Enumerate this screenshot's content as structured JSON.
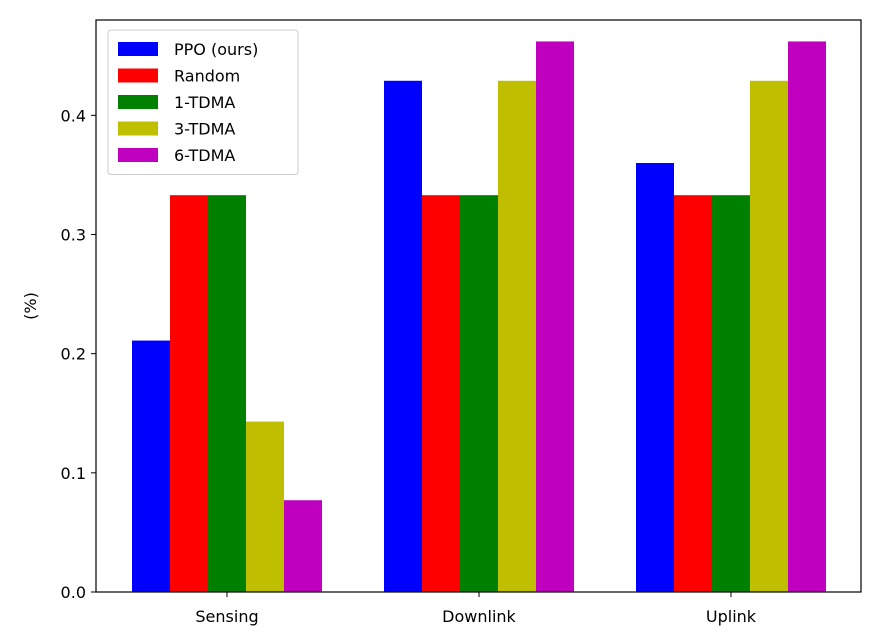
{
  "chart_data": {
    "type": "bar",
    "categories": [
      "Sensing",
      "Downlink",
      "Uplink"
    ],
    "series": [
      {
        "name": "PPO (ours)",
        "color": "#0000ff",
        "values": [
          0.211,
          0.429,
          0.36
        ]
      },
      {
        "name": "Random",
        "color": "#ff0000",
        "values": [
          0.333,
          0.333,
          0.333
        ]
      },
      {
        "name": "1-TDMA",
        "color": "#008000",
        "values": [
          0.333,
          0.333,
          0.333
        ]
      },
      {
        "name": "3-TDMA",
        "color": "#bfbf00",
        "values": [
          0.143,
          0.429,
          0.429
        ]
      },
      {
        "name": "6-TDMA",
        "color": "#bf00bf",
        "values": [
          0.077,
          0.462,
          0.462
        ]
      }
    ],
    "xlabel": "",
    "ylabel": "(%)",
    "ylim": [
      0,
      0.48
    ],
    "yticks": [
      "0.0",
      "0.1",
      "0.2",
      "0.3",
      "0.4"
    ],
    "grid": false,
    "legend_position": "top-left"
  }
}
